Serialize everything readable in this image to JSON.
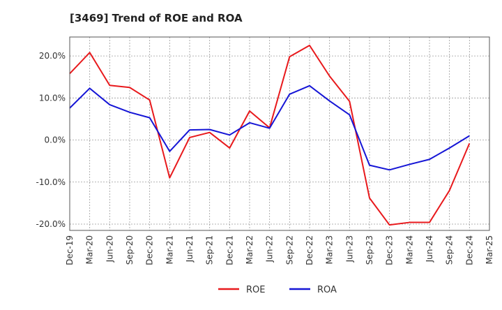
{
  "chart_data": {
    "type": "line",
    "title": "[3469]  Trend of ROE and ROA",
    "xlabel": "",
    "ylabel": "",
    "x": [
      "Dec-19",
      "Mar-20",
      "Jun-20",
      "Sep-20",
      "Dec-20",
      "Mar-21",
      "Jun-21",
      "Sep-21",
      "Dec-21",
      "Mar-22",
      "Jun-22",
      "Sep-22",
      "Dec-22",
      "Mar-23",
      "Jun-23",
      "Sep-23",
      "Dec-23",
      "Mar-24",
      "Jun-24",
      "Sep-24",
      "Dec-24",
      "Mar-25"
    ],
    "ylim": [
      -21.5,
      24.5
    ],
    "yticks": [
      20,
      10,
      0,
      -10,
      -20
    ],
    "ytick_labels": [
      "20.0%",
      "10.0%",
      "0.0%",
      "-10.0%",
      "-20.0%"
    ],
    "grid": true,
    "legend_position": "bottom-center",
    "series": [
      {
        "name": "ROE",
        "color": "#e8191c",
        "values": [
          15.8,
          20.8,
          13.0,
          12.5,
          9.5,
          -9.0,
          0.6,
          1.8,
          -1.9,
          6.9,
          2.9,
          19.8,
          22.5,
          15.2,
          9.2,
          -13.8,
          -20.2,
          -19.6,
          -19.6,
          -12.0,
          -0.8,
          null
        ]
      },
      {
        "name": "ROA",
        "color": "#1515d6",
        "values": [
          7.6,
          12.3,
          8.4,
          6.6,
          5.3,
          -2.7,
          2.4,
          2.5,
          1.2,
          4.1,
          2.8,
          10.9,
          12.9,
          9.3,
          6.0,
          -6.0,
          -7.1,
          -5.8,
          -4.6,
          -1.9,
          1.0,
          null
        ]
      }
    ]
  }
}
